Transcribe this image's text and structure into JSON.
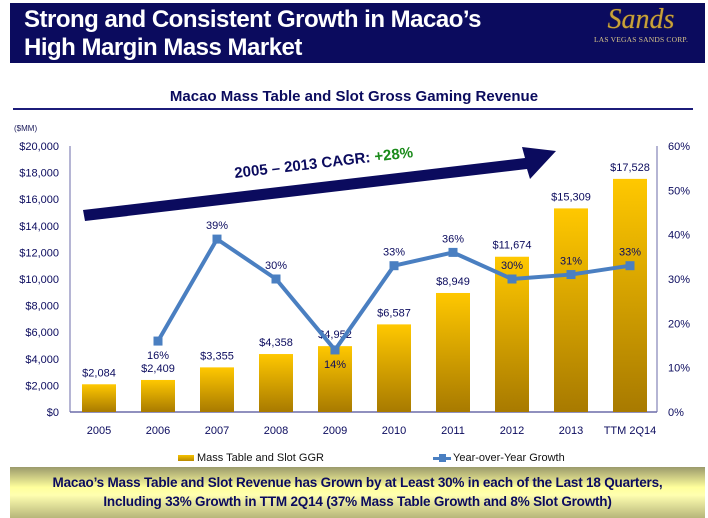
{
  "header": {
    "title_line1": "Strong and Consistent Growth in Macao’s",
    "title_line2": "High Margin Mass Market",
    "logo_word": "Sands",
    "logo_sub": "LAS VEGAS SANDS CORP."
  },
  "colors": {
    "navy": "#0b0b5e",
    "bar_top": "#ffc800",
    "bar_bottom": "#a87a00",
    "line": "#4a7fc1",
    "cagr_green": "#1a8a1a"
  },
  "unit_label": "($MM)",
  "annotation": {
    "cagr_text": "2005 – 2013 CAGR: ",
    "cagr_value": "+28%"
  },
  "chart_data": {
    "type": "bar",
    "title": "Macao Mass Table and Slot Gross Gaming Revenue",
    "xlabel": "",
    "ylabel": "($MM)",
    "categories": [
      "2005",
      "2006",
      "2007",
      "2008",
      "2009",
      "2010",
      "2011",
      "2012",
      "2013",
      "TTM 2Q14"
    ],
    "series": [
      {
        "name": "Mass Table and Slot GGR",
        "type": "bar",
        "axis": "left",
        "values": [
          2084,
          2409,
          3355,
          4358,
          4952,
          6587,
          8949,
          11674,
          15309,
          17528
        ],
        "labels": [
          "$2,084",
          "$2,409",
          "$3,355",
          "$4,358",
          "$4,952",
          "$6,587",
          "$8,949",
          "$11,674",
          "$15,309",
          "$17,528"
        ]
      },
      {
        "name": "Year-over-Year Growth",
        "type": "line",
        "axis": "right",
        "values": [
          null,
          16,
          39,
          30,
          14,
          33,
          36,
          30,
          31,
          33
        ],
        "labels": [
          null,
          "16%",
          "39%",
          "30%",
          "14%",
          "33%",
          "36%",
          "30%",
          "31%",
          "33%"
        ]
      }
    ],
    "ylim": [
      0,
      20000
    ],
    "y_ticks": [
      "$0",
      "$2,000",
      "$4,000",
      "$6,000",
      "$8,000",
      "$10,000",
      "$12,000",
      "$14,000",
      "$16,000",
      "$18,000",
      "$20,000"
    ],
    "y2lim": [
      0,
      60
    ],
    "y2_ticks": [
      "0%",
      "10%",
      "20%",
      "30%",
      "40%",
      "50%",
      "60%"
    ],
    "grid": false,
    "legend_position": "bottom",
    "annotations": [
      "2005 – 2013 CAGR: +28%"
    ]
  },
  "legend": {
    "bar_label": "Mass Table and Slot GGR",
    "line_label": "Year-over-Year Growth"
  },
  "banner": {
    "line1": "Macao’s Mass Table and Slot Revenue has Grown by at Least 30% in each of the Last 18 Quarters,",
    "line2": "Including 33% Growth in TTM 2Q14 (37% Mass Table Growth and 8% Slot Growth)"
  }
}
